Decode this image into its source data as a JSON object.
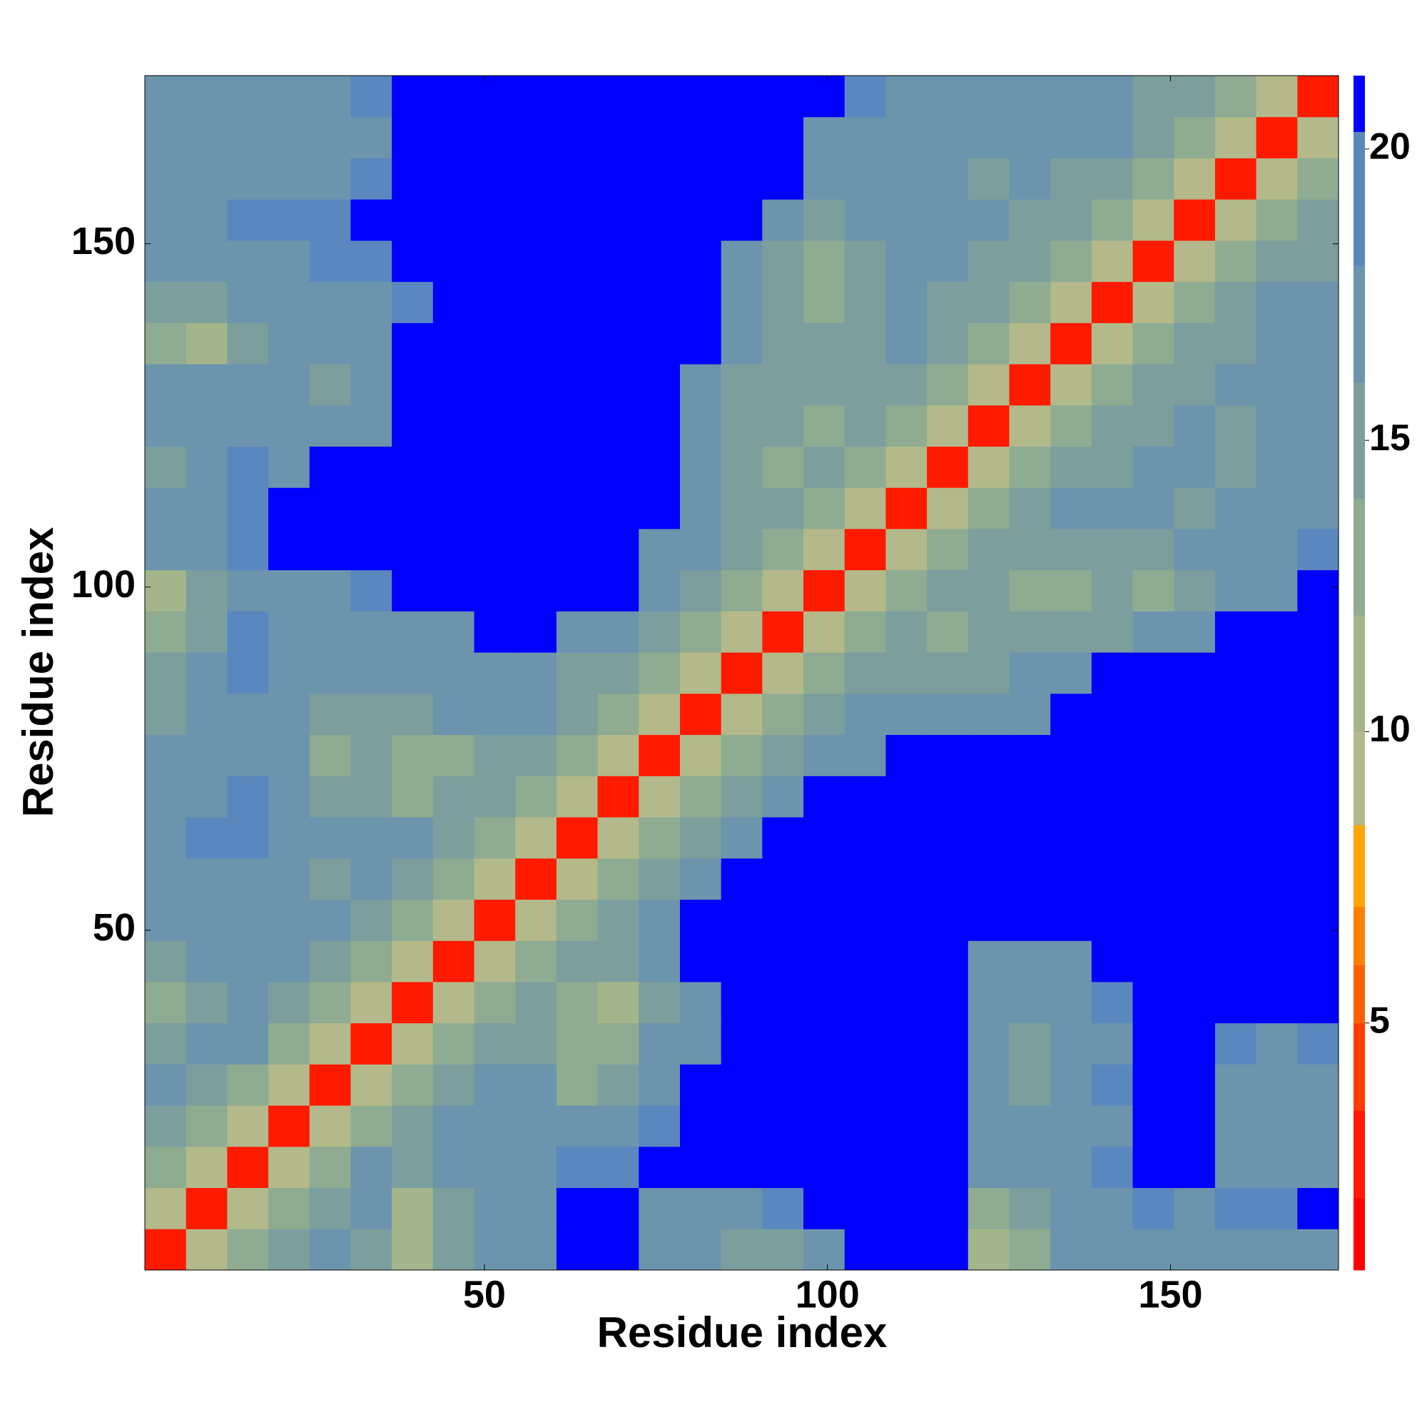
{
  "chart_data": {
    "type": "heatmap",
    "x_label": "Residue index",
    "y_label": "Residue index",
    "xlim": [
      0.5,
      174.5
    ],
    "ylim": [
      0.5,
      174.5
    ],
    "xticks": [
      50,
      100,
      150
    ],
    "yticks": [
      50,
      100,
      150
    ],
    "x": [
      3.5,
      9.5,
      15.5,
      21.5,
      27.5,
      33.5,
      39.5,
      45.5,
      51.5,
      57.5,
      63.5,
      69.5,
      75.5,
      81.5,
      87.5,
      93.5,
      99.5,
      105.5,
      111.5,
      117.5,
      123.5,
      129.5,
      135.5,
      141.5,
      147.5,
      153.5,
      159.5,
      165.5,
      171.5
    ],
    "y": [
      3.5,
      9.5,
      15.5,
      21.5,
      27.5,
      33.5,
      39.5,
      45.5,
      51.5,
      57.5,
      63.5,
      69.5,
      75.5,
      81.5,
      87.5,
      93.5,
      99.5,
      105.5,
      111.5,
      117.5,
      123.5,
      129.5,
      135.5,
      141.5,
      147.5,
      153.5,
      159.5,
      165.5,
      171.5
    ],
    "z": [
      [
        3,
        9,
        14,
        16,
        17,
        16,
        12,
        16,
        18,
        18,
        21,
        21,
        17,
        17,
        16,
        16,
        17,
        21,
        21,
        21,
        12,
        14,
        17,
        18,
        18,
        17,
        18,
        18,
        18
      ],
      [
        9,
        3,
        9,
        14,
        16,
        17,
        12,
        16,
        18,
        18,
        21,
        21,
        18,
        18,
        18,
        19,
        21,
        21,
        21,
        21,
        14,
        16,
        17,
        18,
        19,
        18,
        19,
        20,
        21
      ],
      [
        14,
        9,
        3,
        9,
        14,
        17,
        16,
        17,
        18,
        18,
        19,
        19,
        21,
        21,
        21,
        21,
        21,
        21,
        21,
        21,
        17,
        17,
        18,
        19,
        21,
        21,
        18,
        17,
        18
      ],
      [
        16,
        14,
        9,
        3,
        9,
        14,
        16,
        17,
        18,
        17,
        17,
        17,
        19,
        21,
        21,
        21,
        21,
        21,
        21,
        21,
        18,
        17,
        17,
        18,
        21,
        21,
        18,
        17,
        18
      ],
      [
        17,
        16,
        14,
        9,
        3,
        9,
        14,
        16,
        17,
        17,
        14,
        16,
        18,
        21,
        21,
        21,
        21,
        21,
        21,
        21,
        18,
        16,
        17,
        19,
        21,
        21,
        18,
        17,
        18
      ],
      [
        16,
        17,
        17,
        14,
        9,
        3,
        9,
        14,
        16,
        16,
        13,
        13,
        17,
        18,
        21,
        21,
        21,
        21,
        21,
        21,
        17,
        16,
        17,
        18,
        21,
        21,
        19,
        18,
        19
      ],
      [
        13,
        16,
        17,
        16,
        14,
        9,
        3,
        9,
        14,
        16,
        14,
        12,
        16,
        17,
        21,
        21,
        21,
        21,
        21,
        21,
        17,
        17,
        18,
        19,
        21,
        21,
        21,
        21,
        21
      ],
      [
        16,
        17,
        17,
        17,
        16,
        14,
        9,
        3,
        9,
        14,
        16,
        16,
        18,
        21,
        21,
        21,
        21,
        21,
        21,
        21,
        18,
        17,
        18,
        21,
        21,
        21,
        21,
        21,
        21
      ],
      [
        17,
        17,
        18,
        17,
        17,
        16,
        14,
        9,
        3,
        9,
        14,
        16,
        17,
        21,
        21,
        21,
        21,
        21,
        21,
        21,
        21,
        21,
        21,
        21,
        21,
        21,
        21,
        21,
        21
      ],
      [
        17,
        18,
        18,
        17,
        16,
        17,
        16,
        14,
        9,
        3,
        9,
        14,
        16,
        17,
        21,
        21,
        21,
        21,
        21,
        21,
        21,
        21,
        21,
        21,
        21,
        21,
        21,
        21,
        21
      ],
      [
        18,
        19,
        19,
        18,
        17,
        17,
        17,
        16,
        14,
        9,
        3,
        9,
        14,
        16,
        17,
        21,
        21,
        21,
        21,
        21,
        21,
        21,
        21,
        21,
        21,
        21,
        21,
        21,
        21
      ],
      [
        18,
        18,
        19,
        17,
        16,
        16,
        14,
        16,
        16,
        14,
        9,
        3,
        9,
        14,
        16,
        18,
        21,
        21,
        21,
        21,
        21,
        21,
        21,
        21,
        21,
        21,
        21,
        21,
        21
      ],
      [
        17,
        18,
        18,
        17,
        14,
        16,
        13,
        14,
        16,
        16,
        14,
        9,
        3,
        9,
        14,
        16,
        17,
        18,
        21,
        21,
        21,
        21,
        21,
        21,
        21,
        21,
        21,
        21,
        21
      ],
      [
        16,
        17,
        18,
        17,
        16,
        16,
        16,
        17,
        18,
        17,
        16,
        14,
        9,
        3,
        9,
        14,
        16,
        17,
        17,
        17,
        17,
        18,
        21,
        21,
        21,
        21,
        21,
        21,
        21
      ],
      [
        16,
        17,
        19,
        18,
        17,
        17,
        17,
        18,
        18,
        17,
        16,
        16,
        14,
        9,
        3,
        9,
        14,
        16,
        16,
        16,
        16,
        17,
        17,
        21,
        21,
        21,
        21,
        21,
        21
      ],
      [
        14,
        16,
        19,
        18,
        17,
        18,
        18,
        18,
        21,
        21,
        18,
        17,
        16,
        14,
        9,
        3,
        9,
        14,
        16,
        14,
        16,
        16,
        16,
        16,
        17,
        17,
        21,
        21,
        21
      ],
      [
        12,
        16,
        18,
        18,
        18,
        19,
        21,
        21,
        21,
        21,
        21,
        21,
        17,
        16,
        14,
        9,
        3,
        9,
        14,
        16,
        16,
        14,
        14,
        16,
        14,
        16,
        17,
        18,
        21
      ],
      [
        17,
        18,
        19,
        21,
        21,
        21,
        21,
        21,
        21,
        21,
        21,
        21,
        18,
        17,
        16,
        14,
        9,
        3,
        9,
        14,
        16,
        16,
        16,
        16,
        16,
        17,
        17,
        18,
        19
      ],
      [
        17,
        18,
        19,
        21,
        21,
        21,
        21,
        21,
        21,
        21,
        21,
        21,
        21,
        17,
        16,
        16,
        14,
        9,
        3,
        9,
        14,
        16,
        17,
        17,
        17,
        16,
        17,
        18,
        18
      ],
      [
        16,
        18,
        19,
        18,
        21,
        21,
        21,
        21,
        21,
        21,
        21,
        21,
        21,
        17,
        16,
        14,
        16,
        14,
        9,
        3,
        9,
        14,
        16,
        16,
        17,
        17,
        16,
        17,
        18
      ],
      [
        17,
        18,
        18,
        17,
        17,
        18,
        21,
        21,
        21,
        21,
        21,
        21,
        21,
        17,
        16,
        16,
        14,
        16,
        14,
        9,
        3,
        9,
        14,
        16,
        16,
        17,
        16,
        17,
        18
      ],
      [
        18,
        18,
        18,
        17,
        16,
        17,
        21,
        21,
        21,
        21,
        21,
        21,
        21,
        18,
        16,
        16,
        16,
        16,
        16,
        14,
        9,
        3,
        9,
        14,
        16,
        16,
        17,
        17,
        18
      ],
      [
        14,
        12,
        16,
        17,
        18,
        18,
        21,
        21,
        21,
        21,
        21,
        21,
        21,
        21,
        17,
        16,
        16,
        16,
        17,
        16,
        14,
        9,
        3,
        9,
        14,
        16,
        16,
        17,
        18
      ],
      [
        16,
        16,
        17,
        18,
        18,
        18,
        19,
        21,
        21,
        21,
        21,
        21,
        21,
        21,
        17,
        16,
        14,
        16,
        17,
        16,
        16,
        14,
        9,
        3,
        9,
        14,
        16,
        17,
        17
      ],
      [
        17,
        17,
        18,
        18,
        19,
        19,
        21,
        21,
        21,
        21,
        21,
        21,
        21,
        21,
        17,
        16,
        14,
        16,
        17,
        17,
        16,
        16,
        14,
        9,
        3,
        9,
        14,
        16,
        16
      ],
      [
        18,
        18,
        19,
        19,
        19,
        21,
        21,
        21,
        21,
        21,
        21,
        21,
        21,
        21,
        21,
        17,
        16,
        17,
        17,
        17,
        17,
        16,
        16,
        14,
        9,
        3,
        9,
        14,
        16
      ],
      [
        18,
        18,
        17,
        17,
        18,
        19,
        21,
        21,
        21,
        21,
        21,
        21,
        21,
        21,
        21,
        21,
        17,
        17,
        18,
        17,
        16,
        17,
        16,
        16,
        14,
        9,
        3,
        9,
        14
      ],
      [
        18,
        17,
        17,
        17,
        17,
        18,
        21,
        21,
        21,
        21,
        21,
        21,
        21,
        21,
        21,
        21,
        18,
        18,
        18,
        17,
        17,
        17,
        17,
        17,
        16,
        14,
        9,
        3,
        9
      ],
      [
        18,
        18,
        18,
        18,
        18,
        19,
        21,
        21,
        21,
        21,
        21,
        21,
        21,
        21,
        21,
        21,
        21,
        19,
        18,
        18,
        18,
        18,
        18,
        17,
        16,
        16,
        14,
        9,
        3
      ]
    ],
    "levels": [
      0.76,
      2,
      3.5,
      5,
      6,
      7,
      8.4,
      10,
      12,
      14,
      16,
      18,
      20.3,
      21.26
    ],
    "colors": [
      "#ff0000",
      "#ff1a00",
      "#ff3c00",
      "#ff6000",
      "#ff8000",
      "#ffa500",
      "#b3b98a",
      "#a4b58c",
      "#8fab92",
      "#7c9f9e",
      "#6c94ad",
      "#5b87bf",
      "#0000ff"
    ],
    "colorbar_ticks": [
      5,
      10,
      15,
      20
    ]
  }
}
